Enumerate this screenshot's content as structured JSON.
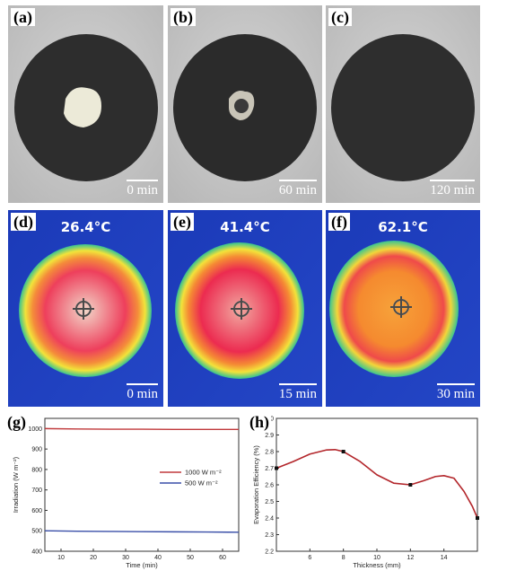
{
  "photo_panels": [
    {
      "label": "(a)",
      "time": "0 min"
    },
    {
      "label": "(b)",
      "time": "60 min"
    },
    {
      "label": "(c)",
      "time": "120 min"
    }
  ],
  "thermal_panels": [
    {
      "label": "(d)",
      "temperature": "26.4°C",
      "time": "0 min"
    },
    {
      "label": "(e)",
      "temperature": "41.4°C",
      "time": "15 min"
    },
    {
      "label": "(f)",
      "temperature": "62.1°C",
      "time": "30 min"
    }
  ],
  "chart_g": {
    "label": "(g)"
  },
  "chart_h": {
    "label": "(h)"
  },
  "chart_data": [
    {
      "type": "line",
      "xlabel": "Time (min)",
      "ylabel": "Irradiation (W m⁻²)",
      "xlim": [
        5,
        65
      ],
      "ylim": [
        400,
        1050
      ],
      "xticks": [
        "10",
        "20",
        "30",
        "40",
        "50",
        "60"
      ],
      "yticks": [
        "400",
        "500",
        "600",
        "700",
        "800",
        "900",
        "1000"
      ],
      "legend_position": "center-right",
      "series": [
        {
          "name": "1000 W m⁻²",
          "color": "#c0393b",
          "x": [
            5,
            15,
            25,
            35,
            45,
            55,
            65
          ],
          "values": [
            1000,
            998,
            997,
            997,
            996,
            996,
            996
          ]
        },
        {
          "name": "500 W m⁻²",
          "color": "#3a4fa8",
          "x": [
            5,
            15,
            25,
            35,
            45,
            55,
            65
          ],
          "values": [
            500,
            498,
            497,
            496,
            495,
            494,
            493
          ]
        }
      ]
    },
    {
      "type": "line",
      "xlabel": "Thickness (mm)",
      "ylabel": "Evaporation Efficiency (%)",
      "xlim": [
        4,
        16
      ],
      "ylim": [
        2.2,
        3.0
      ],
      "xticks": [
        "6",
        "8",
        "10",
        "12",
        "14"
      ],
      "yticks": [
        "2.2",
        "2.3",
        "2.4",
        "2.5",
        "2.6",
        "2.7",
        "2.8",
        "2.9",
        "3.0"
      ],
      "color": "#b3262b",
      "markers": [
        [
          4,
          2.7
        ],
        [
          8,
          2.8
        ],
        [
          12,
          2.6
        ],
        [
          16,
          2.4
        ]
      ],
      "curve": [
        [
          4,
          2.7
        ],
        [
          5,
          2.74
        ],
        [
          6,
          2.785
        ],
        [
          7,
          2.81
        ],
        [
          7.5,
          2.812
        ],
        [
          8,
          2.8
        ],
        [
          9,
          2.74
        ],
        [
          10,
          2.66
        ],
        [
          11,
          2.61
        ],
        [
          12,
          2.6
        ],
        [
          12.8,
          2.625
        ],
        [
          13.5,
          2.65
        ],
        [
          14,
          2.655
        ],
        [
          14.6,
          2.64
        ],
        [
          15.2,
          2.56
        ],
        [
          15.7,
          2.47
        ],
        [
          16,
          2.4
        ]
      ]
    }
  ]
}
